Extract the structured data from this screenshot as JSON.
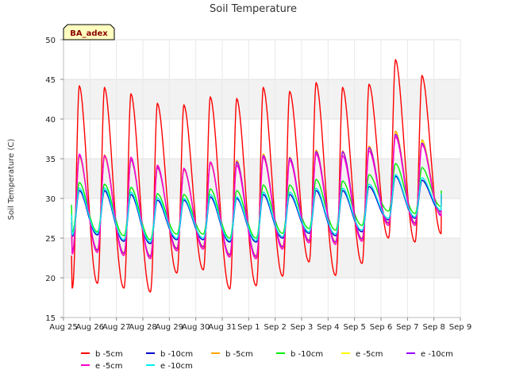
{
  "chart_data": {
    "type": "line",
    "title": "Soil Temperature",
    "xlabel": "",
    "ylabel": "Soil Temperature (C)",
    "site_label": "BA_adex",
    "ylim": [
      15,
      50
    ],
    "yticks": [
      15,
      20,
      25,
      30,
      35,
      40,
      45,
      50
    ],
    "xlim": [
      0,
      15
    ],
    "xtick_labels": [
      "Aug 25",
      "Aug 26",
      "Aug 27",
      "Aug 28",
      "Aug 29",
      "Aug 30",
      "Aug 31",
      "Sep 1",
      "Sep 2",
      "Sep 3",
      "Sep 4",
      "Sep 5",
      "Sep 6",
      "Sep 7",
      "Sep 8",
      "Sep 9"
    ],
    "grid": true,
    "legend_position": "bottom",
    "series": [
      {
        "name": "b -5cm",
        "color": "#ff0000",
        "start": 0.3,
        "first": 22.8,
        "max": [
          44.2,
          44.0,
          43.2,
          42.0,
          41.8,
          42.8,
          42.6,
          44.0,
          43.5,
          44.6,
          44.0,
          44.4,
          47.5,
          45.5
        ],
        "min": [
          18.7,
          19.3,
          18.7,
          18.2,
          20.6,
          21.0,
          18.6,
          19.0,
          20.2,
          22.0,
          20.3,
          21.8,
          25.0,
          24.5
        ],
        "last": 28.0
      },
      {
        "name": "b -10cm",
        "color": "#0000cc",
        "start": 0.3,
        "first": 27.5,
        "max": [
          31.0,
          31.0,
          30.5,
          29.8,
          29.8,
          30.2,
          30.0,
          30.5,
          30.5,
          31.0,
          31.0,
          31.5,
          32.8,
          32.3
        ],
        "min": [
          25.2,
          25.4,
          24.6,
          24.3,
          24.8,
          24.8,
          24.5,
          24.5,
          25.0,
          25.6,
          25.3,
          25.8,
          27.3,
          27.5
        ],
        "last": 30.3
      },
      {
        "name": "b -5cm",
        "color": "#ffa500",
        "start": 0.3,
        "first": 27.5,
        "max": [
          35.5,
          35.5,
          35.0,
          34.0,
          33.8,
          34.6,
          34.8,
          35.6,
          35.2,
          36.1,
          36.0,
          36.6,
          38.5,
          37.4
        ],
        "min": [
          23.2,
          23.4,
          23.0,
          22.6,
          23.6,
          23.8,
          22.8,
          22.6,
          23.8,
          24.6,
          24.4,
          24.8,
          26.8,
          26.8
        ],
        "last": 30.5
      },
      {
        "name": "b -10cm",
        "color": "#00ee00",
        "start": 0.3,
        "first": 29.2,
        "max": [
          32.0,
          31.8,
          31.4,
          30.6,
          30.5,
          31.2,
          31.0,
          31.7,
          31.7,
          32.4,
          32.2,
          33.0,
          34.4,
          33.9
        ],
        "min": [
          25.8,
          25.8,
          25.3,
          24.8,
          25.5,
          25.5,
          25.0,
          25.0,
          25.6,
          26.2,
          26.0,
          26.6,
          28.4,
          28.1
        ],
        "last": 31.0
      },
      {
        "name": "e -5cm",
        "color": "#ffff00",
        "start": 0.3,
        "first": 27.2,
        "max": [
          35.2,
          35.2,
          34.8,
          33.8,
          33.6,
          34.4,
          34.5,
          35.3,
          35.0,
          35.8,
          35.8,
          36.3,
          38.2,
          37.2
        ],
        "min": [
          23.4,
          23.6,
          23.2,
          22.8,
          23.8,
          24.0,
          23.0,
          22.8,
          24.0,
          24.8,
          24.6,
          25.0,
          27.0,
          27.0
        ],
        "last": 30.5
      },
      {
        "name": "e -10cm",
        "color": "#9900ff",
        "start": 0.3,
        "first": 27.0,
        "max": [
          35.4,
          35.4,
          34.9,
          33.9,
          33.7,
          34.5,
          34.6,
          35.4,
          35.1,
          35.9,
          35.9,
          36.4,
          38.1,
          37.0
        ],
        "min": [
          23.3,
          23.5,
          23.1,
          22.7,
          23.7,
          23.9,
          22.9,
          22.7,
          23.9,
          24.7,
          24.5,
          24.9,
          26.9,
          26.9
        ],
        "last": 30.4
      },
      {
        "name": "e -5cm",
        "color": "#ff00cc",
        "start": 0.3,
        "first": 26.8,
        "max": [
          35.6,
          35.4,
          35.2,
          34.2,
          33.8,
          34.6,
          34.2,
          35.2,
          34.8,
          35.6,
          35.4,
          36.0,
          37.8,
          36.8
        ],
        "min": [
          23.0,
          23.2,
          22.8,
          22.4,
          23.4,
          23.6,
          22.6,
          22.4,
          23.6,
          24.4,
          24.2,
          24.6,
          26.6,
          26.6
        ],
        "last": 30.6
      },
      {
        "name": "e -10cm",
        "color": "#00eeee",
        "start": 0.3,
        "first": 28.0,
        "max": [
          31.3,
          31.3,
          30.8,
          30.1,
          30.0,
          30.5,
          30.2,
          30.8,
          30.8,
          31.3,
          31.3,
          31.8,
          33.0,
          32.6
        ],
        "min": [
          25.4,
          25.6,
          24.8,
          24.5,
          25.0,
          25.0,
          24.7,
          24.7,
          25.2,
          25.8,
          25.5,
          26.0,
          27.5,
          27.7
        ],
        "last": 30.6
      }
    ]
  }
}
